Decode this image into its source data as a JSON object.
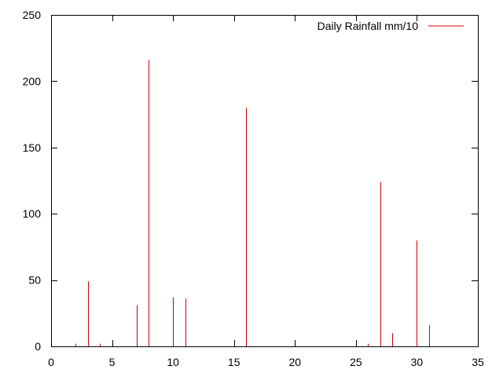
{
  "chart_data": {
    "type": "bar",
    "title": "",
    "xlabel": "",
    "ylabel": "",
    "xlim": [
      0,
      35
    ],
    "ylim": [
      0,
      250
    ],
    "xticks": [
      0,
      5,
      10,
      15,
      20,
      25,
      30,
      35
    ],
    "yticks": [
      0,
      50,
      100,
      150,
      200,
      250
    ],
    "grid": false,
    "legend_position": "top-right",
    "series": [
      {
        "name": "Daily Rainfall mm/10",
        "color": "#cc0000",
        "points": [
          {
            "x": 2,
            "y": 2
          },
          {
            "x": 3,
            "y": 49
          },
          {
            "x": 4,
            "y": 2
          },
          {
            "x": 7,
            "y": 31
          },
          {
            "x": 8,
            "y": 216
          },
          {
            "x": 10,
            "y": 37
          },
          {
            "x": 11,
            "y": 36
          },
          {
            "x": 16,
            "y": 180
          },
          {
            "x": 26,
            "y": 2
          },
          {
            "x": 27,
            "y": 124
          },
          {
            "x": 28,
            "y": 10
          },
          {
            "x": 30,
            "y": 80
          },
          {
            "x": 31,
            "y": 16
          }
        ]
      }
    ]
  }
}
